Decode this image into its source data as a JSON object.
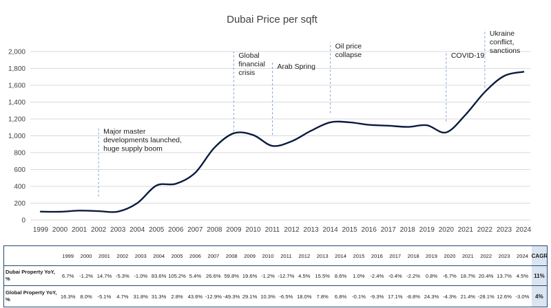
{
  "chart_data": {
    "type": "line",
    "title": "Dubai Price per sqft",
    "x": [
      "1999",
      "2000",
      "2001",
      "2002",
      "2003",
      "2004",
      "2005",
      "2006",
      "2007",
      "2008",
      "2009",
      "2010",
      "2011",
      "2012",
      "2013",
      "2014",
      "2015",
      "2016",
      "2017",
      "2018",
      "2019",
      "2020",
      "2021",
      "2022",
      "2023",
      "2024"
    ],
    "series": [
      {
        "name": "Dubai Price per sqft",
        "values": [
          100,
          98,
          112,
          105,
          100,
          200,
          410,
          430,
          560,
          860,
          1030,
          1010,
          880,
          935,
          1060,
          1160,
          1160,
          1130,
          1120,
          1105,
          1125,
          1040,
          1250,
          1520,
          1710,
          1760
        ]
      }
    ],
    "yticks": [
      "0",
      "200",
      "400",
      "600",
      "800",
      "1,000",
      "1,200",
      "1,400",
      "1,600",
      "1,800",
      "2,000"
    ],
    "ylim": [
      0,
      2000
    ],
    "grid": true,
    "annotations": [
      {
        "x": 2002,
        "y_low": 280,
        "y_high": 1100,
        "text": [
          "Major master",
          "developments launched,",
          "huge supply boom"
        ]
      },
      {
        "x": 2009,
        "y_low": 1050,
        "y_high": 2000,
        "text": [
          "Global",
          "financial",
          "crisis"
        ]
      },
      {
        "x": 2011,
        "y_low": 1010,
        "y_high": 1870,
        "text": [
          "Arab Spring"
        ]
      },
      {
        "x": 2014,
        "y_low": 1270,
        "y_high": 2110,
        "text": [
          "Oil price",
          "collapse"
        ]
      },
      {
        "x": 2020,
        "y_low": 1170,
        "y_high": 2000,
        "text": [
          "COVID-19"
        ]
      },
      {
        "x": 2022,
        "y_low": 1570,
        "y_high": 2260,
        "text": [
          "Ukraine",
          "conflict,",
          "sanctions"
        ]
      }
    ]
  },
  "table": {
    "header_years": [
      "1999",
      "2000",
      "2001",
      "2002",
      "2003",
      "2004",
      "2005",
      "2006",
      "2007",
      "2008",
      "2009",
      "2010",
      "2011",
      "2012",
      "2013",
      "2014",
      "2015",
      "2016",
      "2017",
      "2018",
      "2019",
      "2020",
      "2021",
      "2022",
      "2023",
      "2024"
    ],
    "header_cagr": "CAGR",
    "rows": [
      {
        "label": "Dubai Property YoY, %",
        "values": [
          "6.7%",
          "-1.2%",
          "14.7%",
          "-5.3%",
          "-1.0%",
          "83.6%",
          "105.2%",
          "5.4%",
          "26.6%",
          "59.8%",
          "19.6%",
          "-1.2%",
          "-12.7%",
          "4.5%",
          "15.5%",
          "8.6%",
          "1.0%",
          "-2.4%",
          "-0.4%",
          "-2.2%",
          "0.8%",
          "-6.7%",
          "18.7%",
          "20.4%",
          "13.7%",
          "4.5%"
        ],
        "cagr": "11%"
      },
      {
        "label": "Global Property YoY, %",
        "values": [
          "16.3%",
          "8.0%",
          "-5.1%",
          "4.7%",
          "31.8%",
          "31.3%",
          "2.8%",
          "43.6%",
          "-12.9%",
          "-49.3%",
          "29.1%",
          "10.3%",
          "-6.5%",
          "18.0%",
          "7.8%",
          "6.8%",
          "-0.1%",
          "-9.3%",
          "17.1%",
          "-8.8%",
          "24.3%",
          "-4.3%",
          "21.4%",
          "-28.1%",
          "12.6%",
          "-3.0%"
        ],
        "cagr": "4%"
      }
    ]
  }
}
